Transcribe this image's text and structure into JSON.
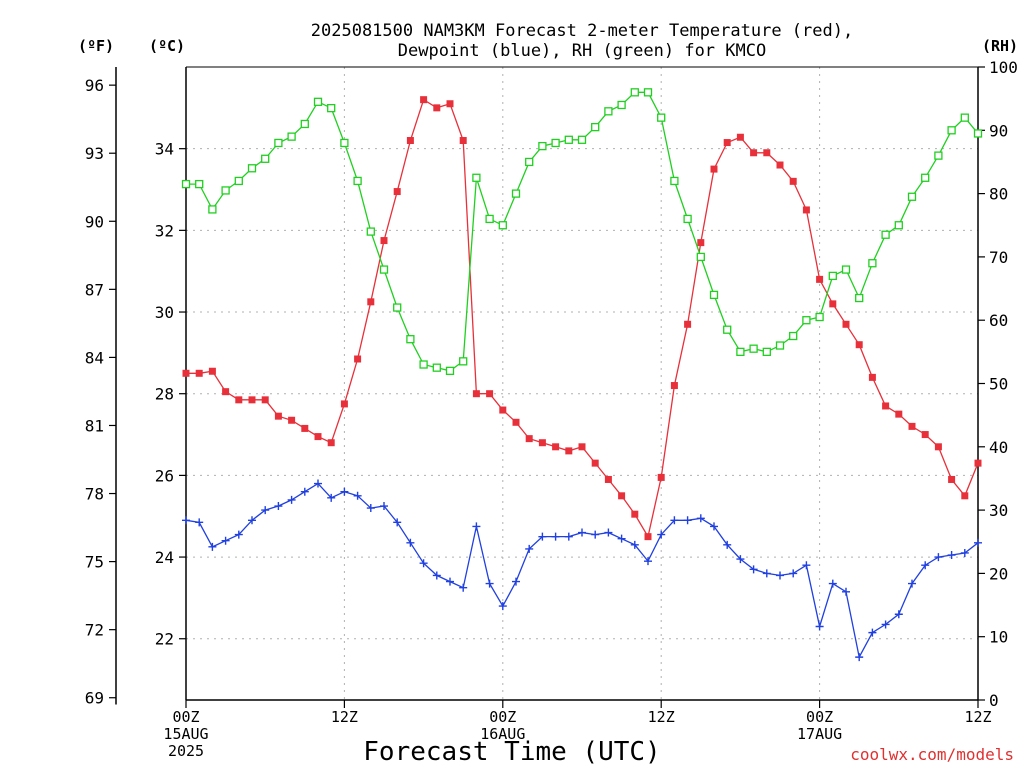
{
  "chart_data": {
    "type": "line",
    "title": [
      "2025081500 NAM3KM Forecast 2-meter Temperature (red),",
      "Dewpoint (blue), RH (green) for KMCO"
    ],
    "xlabel": "Forecast Time (UTC)",
    "credit": "coolwx.com/models",
    "units": {
      "f": "(ºF)",
      "c": "(ºC)",
      "rh": "(RH)"
    },
    "x_unit": "forecast hour from 2025-08-15 00Z",
    "xlim": [
      0,
      60
    ],
    "ylim_c": [
      20.5,
      36.0
    ],
    "ylim_rh": [
      0,
      100
    ],
    "y_f_ticks": [
      "69",
      "72",
      "75",
      "78",
      "81",
      "84",
      "87",
      "90",
      "93",
      "96"
    ],
    "y_c_ticks": [
      "22",
      "24",
      "26",
      "28",
      "30",
      "32",
      "34"
    ],
    "y_rh_ticks": [
      "0",
      "10",
      "20",
      "30",
      "40",
      "50",
      "60",
      "70",
      "80",
      "90",
      "100"
    ],
    "x_ticks": [
      {
        "hour": 0,
        "lines": [
          "00Z",
          "15AUG",
          "2025"
        ]
      },
      {
        "hour": 12,
        "lines": [
          "12Z"
        ]
      },
      {
        "hour": 24,
        "lines": [
          "00Z",
          "16AUG"
        ]
      },
      {
        "hour": 36,
        "lines": [
          "12Z"
        ]
      },
      {
        "hour": 48,
        "lines": [
          "00Z",
          "17AUG"
        ]
      },
      {
        "hour": 60,
        "lines": [
          "12Z"
        ]
      }
    ],
    "grid": true,
    "x": [
      0,
      1,
      2,
      3,
      4,
      5,
      6,
      7,
      8,
      9,
      10,
      11,
      12,
      13,
      14,
      15,
      16,
      17,
      18,
      19,
      20,
      21,
      22,
      23,
      24,
      25,
      26,
      27,
      28,
      29,
      30,
      31,
      32,
      33,
      34,
      35,
      36,
      37,
      38,
      39,
      40,
      41,
      42,
      43,
      44,
      45,
      46,
      47,
      48,
      49,
      50,
      51,
      52,
      53,
      54,
      55,
      56,
      57,
      58,
      59,
      60
    ],
    "series": [
      {
        "name": "Temperature (red)",
        "axis": "c",
        "color": "#e8303a",
        "marker": "filled-square",
        "values": [
          28.5,
          28.5,
          28.55,
          28.05,
          27.85,
          27.85,
          27.85,
          27.45,
          27.35,
          27.15,
          26.95,
          26.8,
          27.75,
          28.85,
          30.25,
          31.75,
          32.95,
          34.2,
          35.2,
          35.0,
          35.1,
          34.2,
          28.0,
          28.0,
          27.6,
          27.3,
          26.9,
          26.8,
          26.7,
          26.6,
          26.7,
          26.3,
          25.9,
          25.5,
          25.05,
          24.5,
          25.95,
          28.2,
          29.7,
          31.7,
          33.5,
          34.15,
          34.28,
          33.9,
          33.9,
          33.6,
          33.2,
          32.5,
          30.8,
          30.2,
          29.7,
          29.2,
          28.4,
          27.7,
          27.5,
          27.2,
          27.0,
          26.7,
          25.9,
          25.5,
          26.3
        ]
      },
      {
        "name": "Dewpoint (blue)",
        "axis": "c",
        "color": "#2040e0",
        "marker": "plus",
        "values": [
          24.9,
          24.85,
          24.25,
          24.4,
          24.55,
          24.9,
          25.15,
          25.25,
          25.4,
          25.6,
          25.8,
          25.45,
          25.6,
          25.5,
          25.2,
          25.25,
          24.85,
          24.35,
          23.85,
          23.55,
          23.4,
          23.25,
          24.75,
          23.35,
          22.8,
          23.4,
          24.2,
          24.5,
          24.5,
          24.5,
          24.6,
          24.55,
          24.6,
          24.45,
          24.3,
          23.9,
          24.55,
          24.9,
          24.9,
          24.95,
          24.75,
          24.3,
          23.95,
          23.7,
          23.6,
          23.55,
          23.6,
          23.8,
          22.3,
          23.35,
          23.15,
          21.55,
          22.15,
          22.35,
          22.6,
          23.35,
          23.8,
          24.0,
          24.05,
          24.1,
          24.35
        ]
      },
      {
        "name": "RH (green)",
        "axis": "rh",
        "color": "#20d020",
        "marker": "open-square",
        "values": [
          81.5,
          81.5,
          77.5,
          80.5,
          82,
          84,
          85.5,
          88,
          89,
          91,
          94.5,
          93.5,
          88,
          82,
          74,
          68,
          62,
          57,
          53,
          52.5,
          52,
          53.5,
          82.5,
          76,
          75,
          80,
          85,
          87.5,
          88,
          88.5,
          88.5,
          90.5,
          93,
          94,
          96,
          96,
          92,
          82,
          76,
          70,
          64,
          58.5,
          55,
          55.5,
          55,
          56,
          57.5,
          60,
          60.5,
          67,
          68,
          63.5,
          69,
          73.5,
          75,
          79.5,
          82.5,
          86,
          90,
          92,
          89.5
        ]
      }
    ]
  }
}
